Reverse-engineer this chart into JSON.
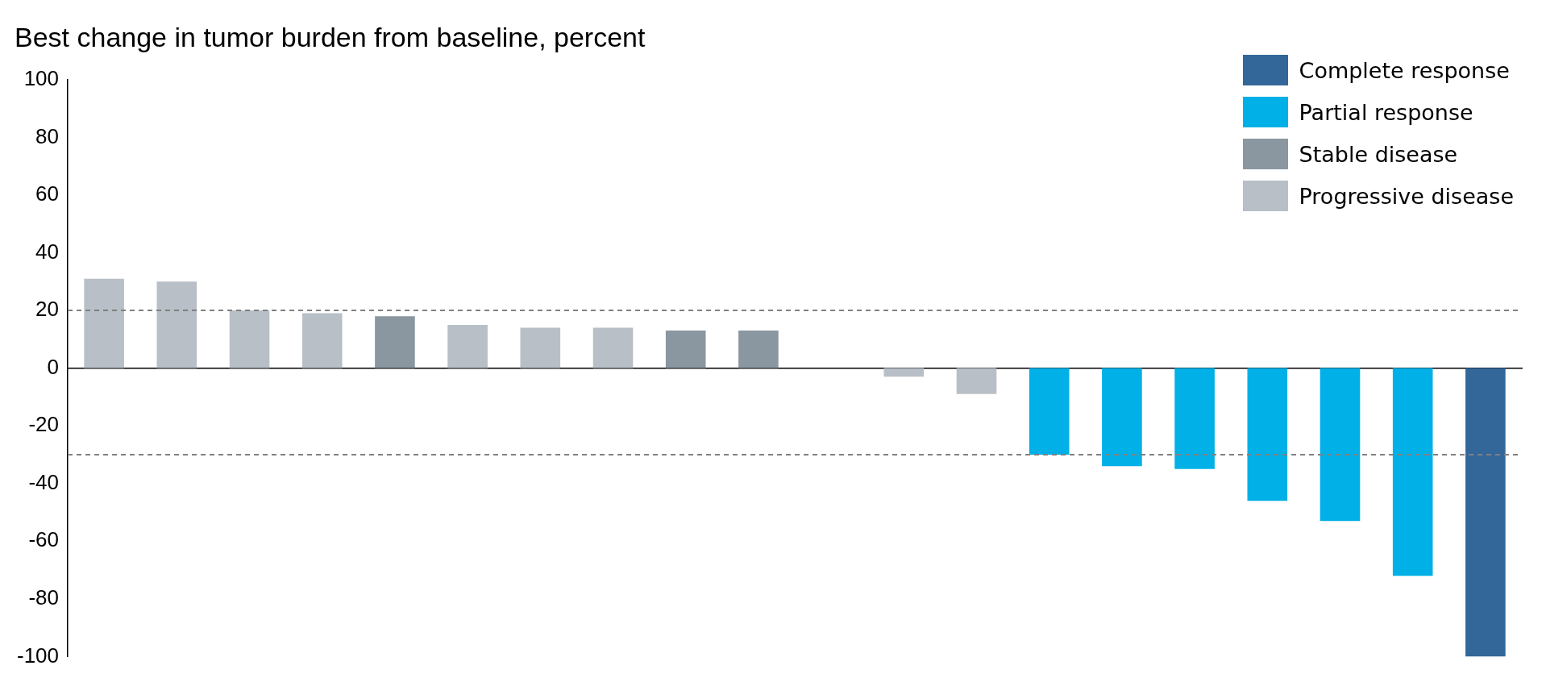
{
  "chart_data": {
    "type": "bar",
    "title": "Best change in tumor burden from baseline, percent",
    "categories": [
      null,
      null,
      null,
      null,
      null,
      null,
      null,
      null,
      null,
      null,
      null,
      null,
      null,
      null,
      null,
      null,
      null,
      null,
      null,
      null
    ],
    "series": [
      {
        "name": "Complete response",
        "color": "#336699",
        "values": [
          null,
          null,
          null,
          null,
          null,
          null,
          null,
          null,
          null,
          null,
          null,
          null,
          null,
          null,
          null,
          null,
          null,
          null,
          null,
          -100
        ]
      },
      {
        "name": "Partial response",
        "color": "#00b0e6",
        "values": [
          null,
          null,
          null,
          null,
          null,
          null,
          null,
          null,
          null,
          null,
          null,
          null,
          null,
          -30,
          -34,
          -35,
          -46,
          -53,
          -72,
          null
        ]
      },
      {
        "name": "Stable disease",
        "color": "#8a97a0",
        "values": [
          null,
          null,
          null,
          null,
          18,
          null,
          null,
          null,
          13,
          13,
          null,
          null,
          null,
          null,
          null,
          null,
          null,
          null,
          null,
          null
        ]
      },
      {
        "name": "Progressive disease",
        "color": "#b8bfc6",
        "values": [
          31,
          30,
          20,
          19,
          null,
          15,
          14,
          14,
          null,
          null,
          null,
          -3,
          -9,
          null,
          null,
          null,
          null,
          null,
          null,
          null
        ]
      }
    ],
    "ylim": [
      -100,
      100
    ],
    "yticks": [
      -100,
      -80,
      -60,
      -40,
      -20,
      0,
      20,
      40,
      60,
      80,
      100
    ],
    "ref_lines": [
      {
        "axis": "y",
        "value": 20,
        "color": "#808080",
        "line_style": "dashed"
      },
      {
        "axis": "y",
        "value": -30,
        "color": "#808080",
        "line_style": "dashed"
      }
    ],
    "legend": "top right",
    "grid": false
  }
}
